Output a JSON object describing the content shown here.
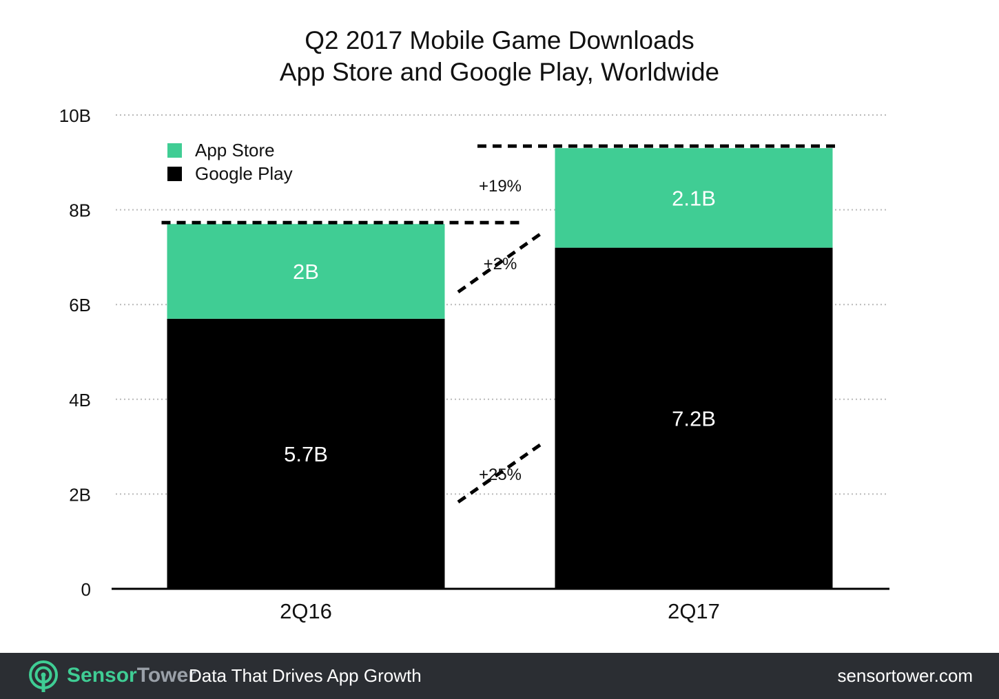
{
  "chart_data": {
    "type": "bar",
    "stacked": true,
    "title": "Q2 2017 Mobile Game Downloads",
    "subtitle": "App Store and Google Play, Worldwide",
    "categories": [
      "2Q16",
      "2Q17"
    ],
    "series": [
      {
        "name": "Google Play",
        "values": [
          5.7,
          7.2
        ],
        "labels": [
          "5.7B",
          "7.2B"
        ],
        "color": "#000000"
      },
      {
        "name": "App Store",
        "values": [
          2.0,
          2.1
        ],
        "labels": [
          "2B",
          "2.1B"
        ],
        "color": "#40cd94"
      }
    ],
    "ylim": [
      0,
      10
    ],
    "yticks": [
      0,
      2,
      4,
      6,
      8,
      10
    ],
    "ytick_labels": [
      "0",
      "2B",
      "4B",
      "6B",
      "8B",
      "10B"
    ],
    "grid": true,
    "legend_position": "top-left",
    "annotations": {
      "total_growth": "+19%",
      "app_store_growth": "+2%",
      "google_play_growth": "+25%"
    }
  },
  "footer": {
    "brand_first": "Sensor",
    "brand_second": "Tower",
    "tagline": "Data That Drives App Growth",
    "site": "sensortower.com",
    "logo_icon": "sensortower-logo-icon",
    "background": "#2b2e33",
    "accent": "#3fcd94"
  }
}
